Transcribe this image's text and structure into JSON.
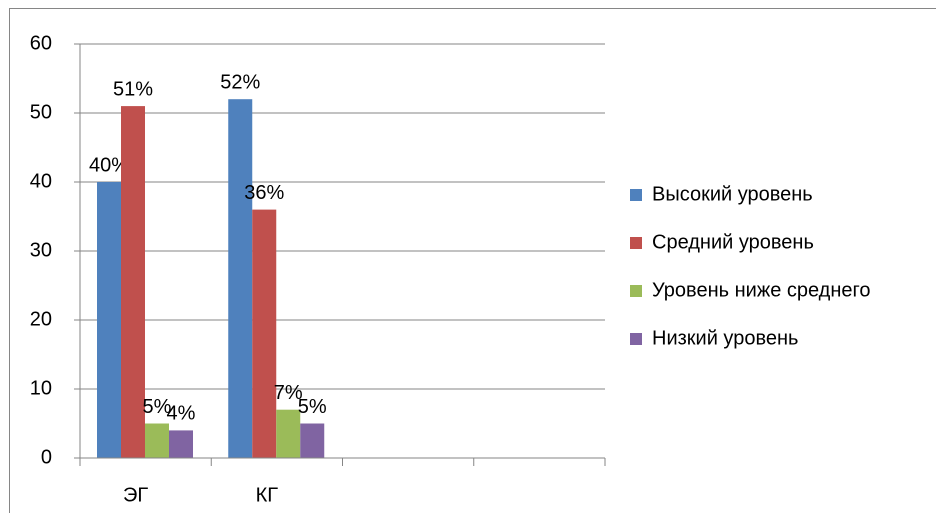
{
  "chart_data": {
    "type": "bar",
    "categories": [
      "ЭГ",
      "КГ",
      null,
      null
    ],
    "series": [
      {
        "name": "Высокий уровень",
        "color": "#4f81bd",
        "values": [
          40,
          52,
          null,
          null
        ],
        "value_labels": [
          "40%",
          "52%",
          null,
          null
        ]
      },
      {
        "name": "Средний уровень",
        "color": "#c0504d",
        "values": [
          51,
          36,
          null,
          null
        ],
        "value_labels": [
          "51%",
          "36%",
          null,
          null
        ]
      },
      {
        "name": "Уровень ниже среднего",
        "color": "#9bbb59",
        "values": [
          5,
          7,
          null,
          null
        ],
        "value_labels": [
          "5%",
          "7%",
          null,
          null
        ]
      },
      {
        "name": "Низкий уровень",
        "color": "#8064a2",
        "values": [
          4,
          5,
          null,
          null
        ],
        "value_labels": [
          "4%",
          "5%",
          null,
          null
        ]
      }
    ],
    "ylim": [
      0,
      60
    ],
    "yticks": [
      0,
      10,
      20,
      30,
      40,
      50,
      60
    ],
    "grid": true,
    "legend": "right"
  }
}
